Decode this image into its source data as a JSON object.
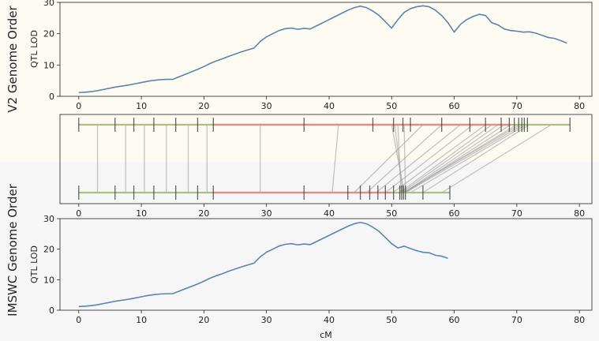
{
  "colors": {
    "top_background": "#fdfaf2",
    "bottom_background": "#f6f6f6",
    "lod_line": "#5b84b1",
    "marker_line_green": "#a9c27f",
    "marker_line_red": "#e8888a",
    "tick": "#333333",
    "connector": "#9e9e9e"
  },
  "labels": {
    "top_group": "V2 Genome Order",
    "bottom_group": "IMSWC Genome Order",
    "ylabel": "QTL LOD",
    "xlabel": "cM"
  },
  "chart_data": [
    {
      "id": "top-lod",
      "type": "line",
      "xlabel": "",
      "ylabel": "QTL LOD",
      "xlim": [
        -3,
        82
      ],
      "ylim": [
        0,
        30
      ],
      "xticks": [
        0,
        10,
        20,
        30,
        40,
        50,
        60,
        70,
        80
      ],
      "yticks": [
        0,
        10,
        20,
        30
      ],
      "x": [
        0,
        1,
        2,
        3,
        4,
        5,
        6,
        7,
        8,
        9,
        10,
        11,
        12,
        13,
        14,
        15,
        16,
        17,
        18,
        19,
        20,
        21,
        22,
        23,
        24,
        25,
        26,
        27,
        28,
        29,
        30,
        31,
        32,
        33,
        34,
        35,
        36,
        37,
        38,
        39,
        40,
        41,
        42,
        43,
        44,
        45,
        46,
        47,
        48,
        49,
        50,
        51,
        52,
        53,
        54,
        55,
        56,
        57,
        58,
        59,
        60,
        61,
        62,
        63,
        64,
        65,
        66,
        67,
        68,
        69,
        70,
        71,
        72,
        73,
        74,
        75,
        76,
        77,
        78
      ],
      "y": [
        1.2,
        1.3,
        1.5,
        1.8,
        2.2,
        2.6,
        3.0,
        3.3,
        3.6,
        4.0,
        4.4,
        4.8,
        5.1,
        5.3,
        5.4,
        5.4,
        6.2,
        7.0,
        7.8,
        8.6,
        9.5,
        10.5,
        11.3,
        12.0,
        12.8,
        13.5,
        14.2,
        14.8,
        15.4,
        17.5,
        19.0,
        20.0,
        21.0,
        21.6,
        21.8,
        21.4,
        21.7,
        21.5,
        22.5,
        23.5,
        24.5,
        25.5,
        26.5,
        27.5,
        28.3,
        28.8,
        28.3,
        27.2,
        25.8,
        23.8,
        21.8,
        24.5,
        26.8,
        28.0,
        28.6,
        28.9,
        28.6,
        27.5,
        25.8,
        23.5,
        20.5,
        23.0,
        24.5,
        25.5,
        26.2,
        25.8,
        23.5,
        22.8,
        21.5,
        21.0,
        20.8,
        20.5,
        20.6,
        20.2,
        19.5,
        18.8,
        18.5,
        17.8,
        17.0
      ]
    },
    {
      "id": "bottom-lod",
      "type": "line",
      "xlabel": "cM",
      "ylabel": "QTL LOD",
      "xlim": [
        -3,
        82
      ],
      "ylim": [
        0,
        30
      ],
      "xticks": [
        0,
        10,
        20,
        30,
        40,
        50,
        60,
        70,
        80
      ],
      "yticks": [
        0,
        10,
        20,
        30
      ],
      "x": [
        0,
        1,
        2,
        3,
        4,
        5,
        6,
        7,
        8,
        9,
        10,
        11,
        12,
        13,
        14,
        15,
        16,
        17,
        18,
        19,
        20,
        21,
        22,
        23,
        24,
        25,
        26,
        27,
        28,
        29,
        30,
        31,
        32,
        33,
        34,
        35,
        36,
        37,
        38,
        39,
        40,
        41,
        42,
        43,
        44,
        45,
        46,
        47,
        48,
        49,
        50,
        51,
        52,
        53,
        54,
        55,
        56,
        57,
        58,
        59
      ],
      "y": [
        1.2,
        1.3,
        1.5,
        1.8,
        2.2,
        2.6,
        3.0,
        3.3,
        3.6,
        4.0,
        4.4,
        4.8,
        5.1,
        5.3,
        5.4,
        5.4,
        6.2,
        7.0,
        7.8,
        8.6,
        9.5,
        10.5,
        11.3,
        12.0,
        12.8,
        13.5,
        14.2,
        14.8,
        15.4,
        17.5,
        19.0,
        20.0,
        21.0,
        21.6,
        21.8,
        21.4,
        21.7,
        21.5,
        22.5,
        23.5,
        24.5,
        25.5,
        26.5,
        27.5,
        28.3,
        28.8,
        28.3,
        27.2,
        25.8,
        23.8,
        21.8,
        20.4,
        21.0,
        20.2,
        19.5,
        19.0,
        18.8,
        18.0,
        17.7,
        17.0
      ]
    },
    {
      "id": "marker-alignment",
      "type": "scatter",
      "xlim": [
        -3,
        82
      ],
      "xticks": [
        0,
        10,
        20,
        30,
        40,
        50,
        60,
        70,
        80
      ],
      "red_interval_top": [
        21.5,
        69
      ],
      "red_interval_bottom": [
        21.5,
        50
      ],
      "top_markers": [
        0,
        5.8,
        8.8,
        12,
        15.5,
        19,
        21.5,
        36,
        47,
        50.3,
        51.8,
        53,
        58,
        62.5,
        65,
        67.5,
        68.8,
        69.6,
        70.3,
        70.8,
        71.2,
        71.7,
        78.5
      ],
      "bottom_markers": [
        0,
        5.8,
        8.8,
        12,
        15.5,
        19,
        21.5,
        36,
        43,
        45,
        46.5,
        47.8,
        49,
        50.3,
        51.3,
        51.6,
        51.9,
        52.2,
        55,
        59.3
      ],
      "connections": [
        [
          3,
          3
        ],
        [
          7.5,
          7.5
        ],
        [
          10.5,
          10.5
        ],
        [
          14,
          14
        ],
        [
          17.5,
          17.5
        ],
        [
          20.5,
          20.5
        ],
        [
          29,
          29
        ],
        [
          41.5,
          40.5
        ],
        [
          50,
          52
        ],
        [
          50.5,
          51.8
        ],
        [
          51,
          51.5
        ],
        [
          52,
          52.2
        ],
        [
          55,
          44
        ],
        [
          58,
          46
        ],
        [
          61,
          47.5
        ],
        [
          63,
          49
        ],
        [
          65,
          50.2
        ],
        [
          66,
          51.3
        ],
        [
          67,
          51.6
        ],
        [
          68,
          52
        ],
        [
          69,
          52.2
        ],
        [
          70,
          52
        ],
        [
          70.5,
          51.8
        ],
        [
          71,
          52.2
        ],
        [
          71.5,
          53
        ],
        [
          72,
          55
        ],
        [
          75.5,
          58
        ]
      ]
    }
  ]
}
